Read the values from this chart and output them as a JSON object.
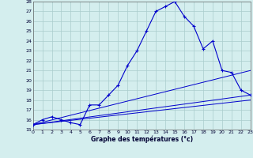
{
  "xlabel": "Graphe des températures (°c)",
  "background_color": "#d4eeee",
  "grid_color": "#aacccc",
  "line_color": "#0000cc",
  "ylim": [
    15,
    28
  ],
  "xlim": [
    0,
    23
  ],
  "yticks": [
    15,
    16,
    17,
    18,
    19,
    20,
    21,
    22,
    23,
    24,
    25,
    26,
    27,
    28
  ],
  "xticks": [
    0,
    1,
    2,
    3,
    4,
    5,
    6,
    7,
    8,
    9,
    10,
    11,
    12,
    13,
    14,
    15,
    16,
    17,
    18,
    19,
    20,
    21,
    22,
    23
  ],
  "main_line_x": [
    0,
    1,
    2,
    3,
    4,
    5,
    6,
    7,
    8,
    9,
    10,
    11,
    12,
    13,
    14,
    15,
    16,
    17,
    18,
    19,
    20,
    21,
    22,
    23
  ],
  "main_line_y": [
    15.5,
    16.0,
    16.3,
    16.0,
    15.7,
    15.5,
    17.5,
    17.5,
    18.5,
    19.5,
    21.5,
    23.0,
    25.0,
    27.0,
    27.5,
    28.0,
    26.5,
    25.5,
    23.2,
    24.0,
    21.0,
    20.8,
    19.0,
    18.5
  ],
  "straight_lines": [
    {
      "x": [
        0,
        23
      ],
      "y": [
        15.5,
        21.0
      ]
    },
    {
      "x": [
        0,
        23
      ],
      "y": [
        15.5,
        18.5
      ]
    },
    {
      "x": [
        0,
        23
      ],
      "y": [
        15.5,
        18.0
      ]
    }
  ]
}
